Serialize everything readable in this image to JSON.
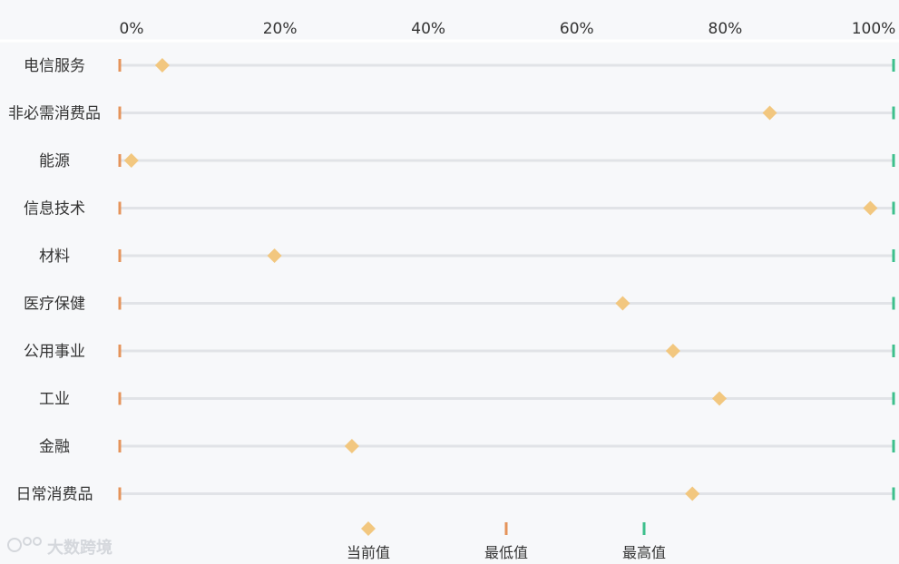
{
  "chart_data": {
    "type": "scatter",
    "orientation": "horizontal",
    "x_axis": {
      "position": "top",
      "ticks": [
        0,
        20,
        40,
        60,
        80,
        100
      ],
      "tick_labels": [
        "0%",
        "20%",
        "40%",
        "60%",
        "80%",
        "100%"
      ],
      "range": [
        0,
        100
      ],
      "unit": "%"
    },
    "categories": [
      "电信服务",
      "非必需消费品",
      "能源",
      "信息技术",
      "材料",
      "医疗保健",
      "公用事业",
      "工业",
      "金融",
      "日常消费品"
    ],
    "series": [
      {
        "name": "当前值",
        "marker": "diamond",
        "color": "#f2c77f",
        "values": [
          5.5,
          84,
          1.5,
          97,
          20,
          65,
          71.5,
          77.5,
          30,
          74
        ]
      },
      {
        "name": "最低值",
        "marker": "bar",
        "color": "#e5935a",
        "values": [
          0,
          0,
          0,
          0,
          0,
          0,
          0,
          0,
          0,
          0
        ]
      },
      {
        "name": "最高值",
        "marker": "bar",
        "color": "#3dbf8c",
        "values": [
          100,
          100,
          100,
          100,
          100,
          100,
          100,
          100,
          100,
          100
        ]
      }
    ],
    "legend": {
      "position": "bottom",
      "items": [
        "当前值",
        "最低值",
        "最高值"
      ]
    },
    "grid": false
  },
  "colors": {
    "track": "#e1e3e7",
    "axis_line": "#ffffff",
    "current": "#f2c77f",
    "min": "#e5935a",
    "max": "#3dbf8c",
    "watermark": "#d4d7dc"
  },
  "watermark": {
    "text": "大数跨境"
  }
}
